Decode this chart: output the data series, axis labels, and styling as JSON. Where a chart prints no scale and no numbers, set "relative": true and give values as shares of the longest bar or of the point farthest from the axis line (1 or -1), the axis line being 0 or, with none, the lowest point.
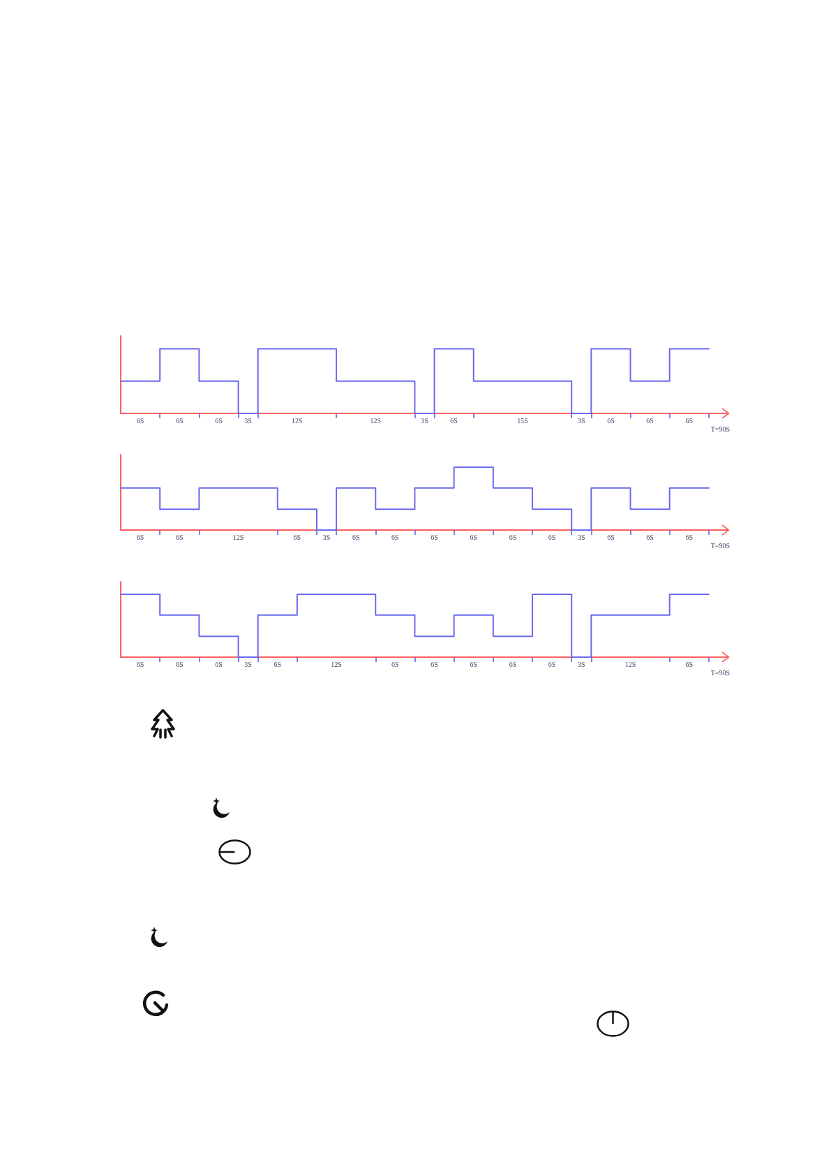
{
  "chart_data": [
    {
      "type": "step",
      "relative": true,
      "color": "#6a6af0",
      "marker": "none",
      "xlabel": "T=90S",
      "categories": [
        null,
        null,
        "6S",
        null,
        null,
        null,
        "6S",
        null,
        null,
        null,
        "6S",
        null,
        null,
        "3S",
        null,
        null,
        null,
        null,
        "12S",
        null,
        null,
        null,
        null,
        null,
        null,
        null,
        "12S",
        null,
        null,
        null,
        null,
        "3S",
        null,
        null,
        "6S",
        null,
        null,
        null,
        null,
        null,
        null,
        "15S",
        null,
        null,
        null,
        null,
        null,
        "3S",
        null,
        null,
        "6S",
        null,
        null,
        null,
        "6S",
        null,
        null,
        null,
        "6S",
        null,
        null,
        null,
        null
      ],
      "values": [
        0.5,
        0.5,
        0.5,
        0.5,
        0.5,
        1,
        1,
        1,
        1,
        0.5,
        0.5,
        0.5,
        0.5,
        0,
        0,
        1,
        1,
        1,
        1,
        1,
        1,
        1,
        1,
        0.5,
        0.5,
        0.5,
        0.5,
        0.5,
        0.5,
        0.5,
        0.5,
        0,
        0,
        1,
        1,
        1,
        1,
        0.5,
        0.5,
        0.5,
        0.5,
        0.5,
        0.5,
        0.5,
        0.5,
        0.5,
        0.5,
        0,
        0,
        1,
        1,
        1,
        1,
        0.5,
        0.5,
        0.5,
        0.5,
        1,
        1,
        1,
        1,
        null,
        null
      ]
    },
    {
      "type": "step",
      "relative": true,
      "color": "#6a6af0",
      "marker": "none",
      "xlabel": "T=90S",
      "categories": [
        null,
        null,
        "6S",
        null,
        null,
        null,
        "6S",
        null,
        null,
        null,
        null,
        null,
        "12S",
        null,
        null,
        null,
        null,
        null,
        "6S",
        null,
        null,
        "3S",
        null,
        null,
        "6S",
        null,
        null,
        null,
        "6S",
        null,
        null,
        null,
        "6S",
        null,
        null,
        null,
        "6S",
        null,
        null,
        null,
        "6S",
        null,
        null,
        null,
        "6S",
        null,
        null,
        "3S",
        null,
        null,
        "6S",
        null,
        null,
        null,
        "6S",
        null,
        null,
        null,
        "6S",
        null,
        null,
        null,
        null
      ],
      "values": [
        0.67,
        0.67,
        0.67,
        0.67,
        0.67,
        0.33,
        0.33,
        0.33,
        0.33,
        0.67,
        0.67,
        0.67,
        0.67,
        0.67,
        0.67,
        0.67,
        0.67,
        0.33,
        0.33,
        0.33,
        0.33,
        0,
        0,
        0.67,
        0.67,
        0.67,
        0.67,
        0.33,
        0.33,
        0.33,
        0.33,
        0.67,
        0.67,
        0.67,
        0.67,
        1,
        1,
        1,
        1,
        0.67,
        0.67,
        0.67,
        0.67,
        0.33,
        0.33,
        0.33,
        0.33,
        0,
        0,
        0.67,
        0.67,
        0.67,
        0.67,
        0.33,
        0.33,
        0.33,
        0.33,
        0.67,
        0.67,
        0.67,
        0.67,
        null,
        null
      ]
    },
    {
      "type": "step",
      "relative": true,
      "color": "#6a6af0",
      "marker": "none",
      "xlabel": "T=90S",
      "categories": [
        null,
        null,
        "6S",
        null,
        null,
        null,
        "6S",
        null,
        null,
        null,
        "6S",
        null,
        null,
        "3S",
        null,
        null,
        "6S",
        null,
        null,
        null,
        null,
        null,
        "12S",
        null,
        null,
        null,
        null,
        null,
        "6S",
        null,
        null,
        null,
        "6S",
        null,
        null,
        null,
        "6S",
        null,
        null,
        null,
        "6S",
        null,
        null,
        null,
        "6S",
        null,
        null,
        "3S",
        null,
        null,
        null,
        null,
        "12S",
        null,
        null,
        null,
        null,
        null,
        "6S",
        null,
        null,
        null,
        null
      ],
      "values": [
        1,
        1,
        1,
        1,
        1,
        0.67,
        0.67,
        0.67,
        0.67,
        0.33,
        0.33,
        0.33,
        0.33,
        0,
        0,
        0.67,
        0.67,
        0.67,
        0.67,
        1,
        1,
        1,
        1,
        1,
        1,
        1,
        1,
        0.67,
        0.67,
        0.67,
        0.67,
        0.33,
        0.33,
        0.33,
        0.33,
        0.67,
        0.67,
        0.67,
        0.67,
        0.33,
        0.33,
        0.33,
        0.33,
        1,
        1,
        1,
        1,
        0,
        0,
        0.67,
        0.67,
        0.67,
        0.67,
        0.67,
        0.67,
        0.67,
        0.67,
        1,
        1,
        1,
        1,
        null,
        null
      ]
    }
  ]
}
